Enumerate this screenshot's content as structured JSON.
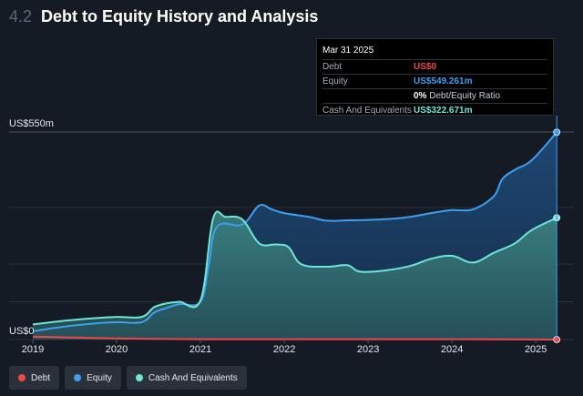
{
  "header": {
    "section_number": "4.2",
    "title": "Debt to Equity History and Analysis"
  },
  "tooltip": {
    "date": "Mar 31 2025",
    "rows": {
      "debt": {
        "label": "Debt",
        "value": "US$0"
      },
      "equity": {
        "label": "Equity",
        "value": "US$549.261m"
      },
      "ratio": {
        "value": "0%",
        "text": "Debt/Equity Ratio"
      },
      "cash": {
        "label": "Cash And Equivalents",
        "value": "US$322.671m"
      }
    }
  },
  "legend": {
    "debt": "Debt",
    "equity": "Equity",
    "cash": "Cash And Equivalents"
  },
  "colors": {
    "debt": "#f0474a",
    "equity": "#3e9ff0",
    "cash": "#6ee6d6",
    "background": "#151b24"
  },
  "chart_data": {
    "type": "area",
    "y_axis_labels": [
      "US$550m",
      "US$0"
    ],
    "ylim": [
      0,
      550
    ],
    "x_ticks": [
      "2019",
      "2020",
      "2021",
      "2022",
      "2023",
      "2024",
      "2025"
    ],
    "xlim": [
      2019.0,
      2025.4
    ],
    "series": [
      {
        "name": "Debt",
        "x": [
          2019.0,
          2020.0,
          2021.0,
          2022.0,
          2023.0,
          2024.0,
          2025.25
        ],
        "values": [
          8,
          3,
          1,
          1,
          1,
          1,
          0
        ]
      },
      {
        "name": "Equity",
        "x": [
          2019.0,
          2019.3,
          2019.7,
          2020.0,
          2020.3,
          2020.45,
          2020.6,
          2020.75,
          2021.0,
          2021.1,
          2021.2,
          2021.5,
          2021.7,
          2021.85,
          2022.0,
          2022.3,
          2022.5,
          2022.75,
          2023.0,
          2023.3,
          2023.5,
          2023.75,
          2024.0,
          2024.25,
          2024.5,
          2024.6,
          2024.75,
          2024.95,
          2025.25
        ],
        "values": [
          22,
          32,
          42,
          46,
          46,
          72,
          84,
          94,
          100,
          200,
          300,
          305,
          355,
          345,
          335,
          325,
          315,
          316,
          317,
          320,
          325,
          335,
          343,
          345,
          380,
          425,
          450,
          475,
          549.261
        ]
      },
      {
        "name": "Cash And Equivalents",
        "x": [
          2019.0,
          2019.3,
          2019.7,
          2020.0,
          2020.3,
          2020.45,
          2020.6,
          2020.75,
          2021.0,
          2021.15,
          2021.3,
          2021.5,
          2021.7,
          2021.9,
          2022.05,
          2022.2,
          2022.5,
          2022.75,
          2022.9,
          2023.2,
          2023.5,
          2023.75,
          2024.0,
          2024.25,
          2024.5,
          2024.75,
          2024.95,
          2025.25
        ],
        "values": [
          40,
          48,
          56,
          60,
          60,
          86,
          96,
          100,
          104,
          320,
          325,
          318,
          255,
          252,
          245,
          200,
          193,
          197,
          180,
          183,
          195,
          214,
          222,
          204,
          230,
          255,
          290,
          322.671
        ]
      }
    ]
  }
}
